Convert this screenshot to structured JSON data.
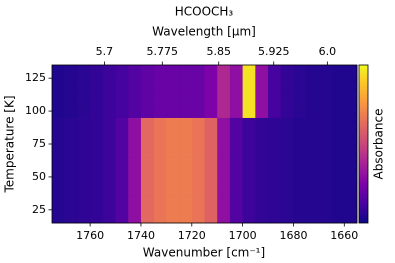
{
  "chart_data": {
    "type": "heatmap",
    "title": "HCOOCH₃",
    "x_label": "Wavenumber [cm⁻¹]",
    "x2_label": "Wavelength [μm]",
    "y_label": "Temperature [K]",
    "colorbar_label": "Absorbance",
    "cmap": "plasma",
    "xlim": [
      1775,
      1655
    ],
    "xticks": [
      1760,
      1740,
      1720,
      1700,
      1680,
      1660
    ],
    "x2ticks": [
      5.7,
      5.775,
      5.85,
      5.925,
      {
        "value": 6.0,
        "label": "6.0"
      }
    ],
    "ylim": [
      15,
      135
    ],
    "yticks": [
      25,
      50,
      75,
      100,
      125
    ],
    "zlim": [
      0,
      1
    ],
    "x": [
      1772.5,
      1767.5,
      1762.5,
      1757.5,
      1752.5,
      1747.5,
      1742.5,
      1737.5,
      1732.5,
      1727.5,
      1722.5,
      1717.5,
      1712.5,
      1707.5,
      1702.5,
      1697.5,
      1692.5,
      1687.5,
      1682.5,
      1677.5,
      1672.5,
      1667.5,
      1662.5,
      1657.5
    ],
    "y": [
      20,
      30,
      40,
      50,
      60,
      70,
      80,
      90,
      100,
      110,
      120,
      130
    ],
    "z": [
      [
        0.05,
        0.06,
        0.07,
        0.08,
        0.1,
        0.15,
        0.3,
        0.62,
        0.66,
        0.68,
        0.68,
        0.66,
        0.6,
        0.3,
        0.15,
        0.1,
        0.08,
        0.07,
        0.06,
        0.05,
        0.05,
        0.05,
        0.04,
        0.04
      ],
      [
        0.05,
        0.06,
        0.07,
        0.08,
        0.1,
        0.15,
        0.3,
        0.62,
        0.66,
        0.68,
        0.68,
        0.66,
        0.6,
        0.3,
        0.15,
        0.1,
        0.08,
        0.07,
        0.06,
        0.05,
        0.05,
        0.05,
        0.04,
        0.04
      ],
      [
        0.05,
        0.06,
        0.07,
        0.08,
        0.1,
        0.15,
        0.3,
        0.62,
        0.66,
        0.68,
        0.68,
        0.66,
        0.6,
        0.3,
        0.15,
        0.1,
        0.08,
        0.07,
        0.06,
        0.05,
        0.05,
        0.05,
        0.04,
        0.04
      ],
      [
        0.05,
        0.06,
        0.07,
        0.08,
        0.1,
        0.15,
        0.3,
        0.62,
        0.66,
        0.68,
        0.68,
        0.66,
        0.6,
        0.3,
        0.15,
        0.1,
        0.08,
        0.07,
        0.06,
        0.05,
        0.05,
        0.05,
        0.04,
        0.04
      ],
      [
        0.05,
        0.06,
        0.07,
        0.08,
        0.1,
        0.15,
        0.3,
        0.62,
        0.66,
        0.68,
        0.68,
        0.66,
        0.6,
        0.3,
        0.15,
        0.1,
        0.08,
        0.07,
        0.06,
        0.05,
        0.05,
        0.05,
        0.04,
        0.04
      ],
      [
        0.05,
        0.06,
        0.07,
        0.08,
        0.1,
        0.15,
        0.3,
        0.62,
        0.66,
        0.68,
        0.68,
        0.66,
        0.6,
        0.3,
        0.15,
        0.1,
        0.08,
        0.07,
        0.06,
        0.05,
        0.05,
        0.05,
        0.04,
        0.04
      ],
      [
        0.05,
        0.06,
        0.07,
        0.08,
        0.1,
        0.15,
        0.3,
        0.62,
        0.66,
        0.68,
        0.68,
        0.66,
        0.6,
        0.3,
        0.15,
        0.1,
        0.08,
        0.07,
        0.06,
        0.05,
        0.05,
        0.05,
        0.04,
        0.04
      ],
      [
        0.05,
        0.06,
        0.07,
        0.08,
        0.1,
        0.15,
        0.3,
        0.62,
        0.66,
        0.68,
        0.68,
        0.66,
        0.6,
        0.3,
        0.15,
        0.1,
        0.08,
        0.07,
        0.06,
        0.05,
        0.05,
        0.05,
        0.04,
        0.04
      ],
      [
        0.04,
        0.05,
        0.06,
        0.08,
        0.1,
        0.12,
        0.15,
        0.18,
        0.2,
        0.2,
        0.2,
        0.2,
        0.25,
        0.4,
        0.3,
        0.95,
        0.3,
        0.12,
        0.08,
        0.06,
        0.05,
        0.05,
        0.04,
        0.04
      ],
      [
        0.04,
        0.05,
        0.06,
        0.08,
        0.1,
        0.12,
        0.15,
        0.18,
        0.2,
        0.2,
        0.2,
        0.2,
        0.25,
        0.4,
        0.3,
        0.95,
        0.3,
        0.12,
        0.08,
        0.06,
        0.05,
        0.05,
        0.04,
        0.04
      ],
      [
        0.04,
        0.05,
        0.06,
        0.08,
        0.1,
        0.12,
        0.15,
        0.18,
        0.2,
        0.2,
        0.2,
        0.2,
        0.25,
        0.4,
        0.3,
        0.95,
        0.3,
        0.12,
        0.08,
        0.06,
        0.05,
        0.05,
        0.04,
        0.04
      ],
      [
        0.04,
        0.05,
        0.06,
        0.08,
        0.1,
        0.12,
        0.15,
        0.18,
        0.2,
        0.2,
        0.2,
        0.2,
        0.25,
        0.4,
        0.3,
        0.95,
        0.3,
        0.12,
        0.08,
        0.06,
        0.05,
        0.05,
        0.04,
        0.04
      ]
    ]
  }
}
